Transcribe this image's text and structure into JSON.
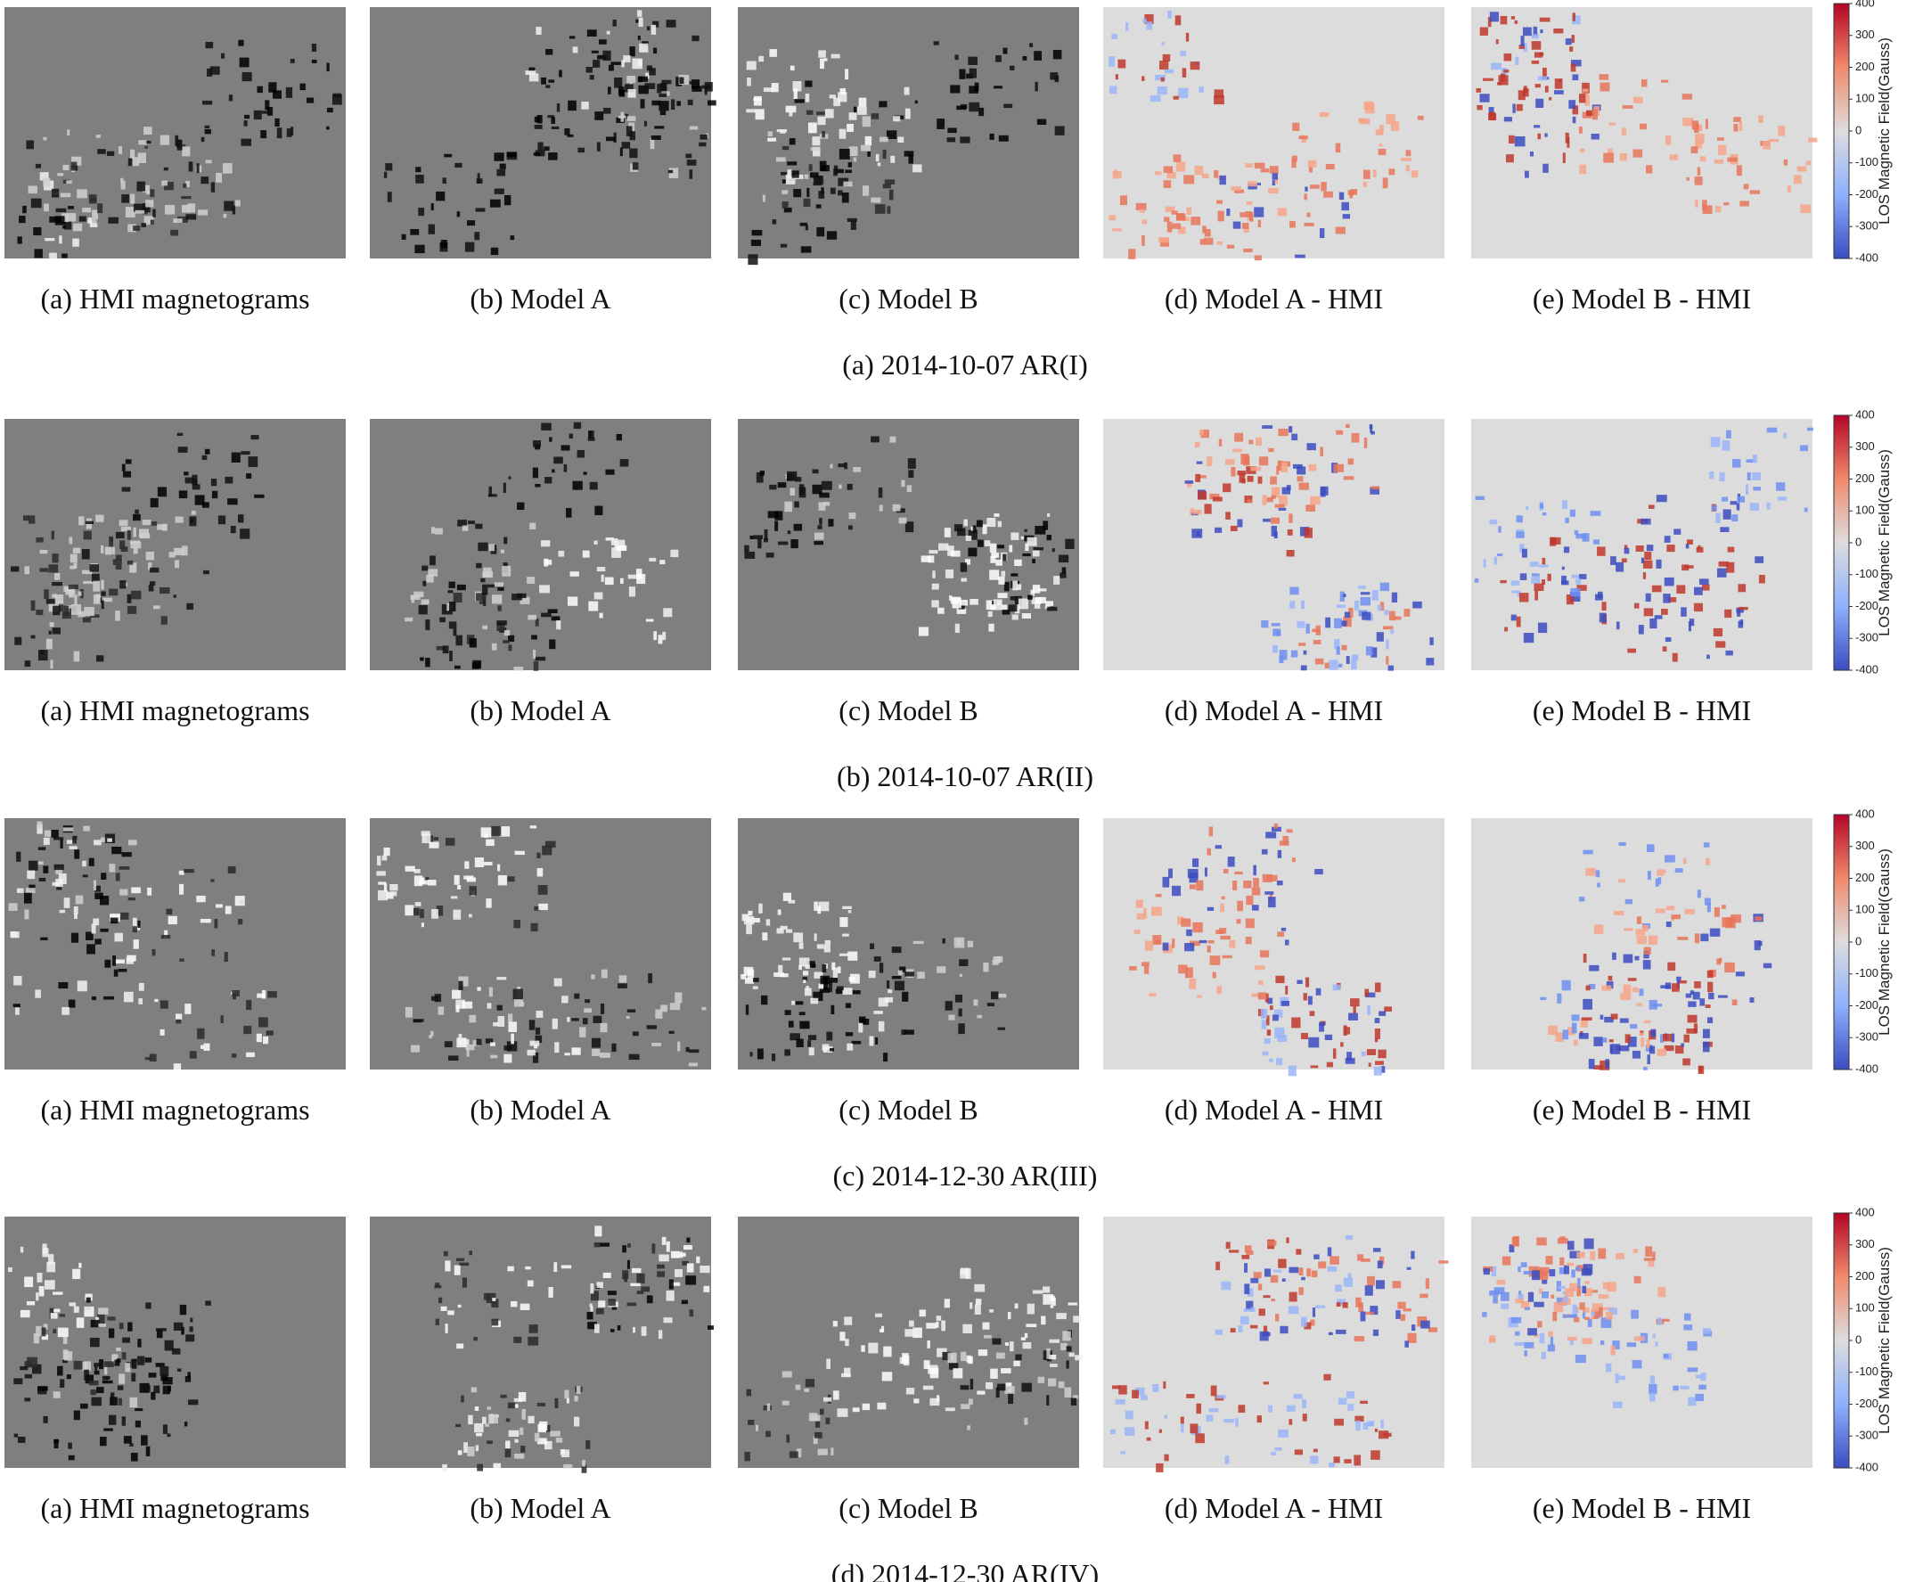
{
  "rows": [
    {
      "panels": [
        {
          "caption": "(a) HMI magnetograms"
        },
        {
          "caption": "(b) Model A"
        },
        {
          "caption": "(c) Model B"
        },
        {
          "caption": "(d) Model A - HMI"
        },
        {
          "caption": "(e) Model B - HMI"
        }
      ],
      "caption": "(a) 2014-10-07 AR(I)",
      "colorbar": {
        "label": "LOS Magnetic Field(Gauss)",
        "range": [
          -400,
          400
        ],
        "ticks": [
          -400,
          -300,
          -200,
          -100,
          0,
          100,
          200,
          300,
          400
        ]
      }
    },
    {
      "panels": [
        {
          "caption": "(a) HMI magnetograms"
        },
        {
          "caption": "(b) Model A"
        },
        {
          "caption": "(c) Model B"
        },
        {
          "caption": "(d) Model A - HMI"
        },
        {
          "caption": "(e) Model B - HMI"
        }
      ],
      "caption": "(b) 2014-10-07 AR(II)",
      "colorbar": {
        "label": "LOS Magnetic Field(Gauss)",
        "range": [
          -400,
          400
        ],
        "ticks": [
          -400,
          -300,
          -200,
          -100,
          0,
          100,
          200,
          300,
          400
        ]
      }
    },
    {
      "panels": [
        {
          "caption": "(a) HMI magnetograms"
        },
        {
          "caption": "(b) Model A"
        },
        {
          "caption": "(c) Model B"
        },
        {
          "caption": "(d) Model A - HMI"
        },
        {
          "caption": "(e) Model B - HMI"
        }
      ],
      "caption": "(c) 2014-12-30 AR(III)",
      "colorbar": {
        "label": "LOS Magnetic Field(Gauss)",
        "range": [
          -400,
          400
        ],
        "ticks": [
          -400,
          -300,
          -200,
          -100,
          0,
          100,
          200,
          300,
          400
        ]
      }
    },
    {
      "panels": [
        {
          "caption": "(a) HMI magnetograms"
        },
        {
          "caption": "(b) Model A"
        },
        {
          "caption": "(c) Model B"
        },
        {
          "caption": "(d) Model A - HMI"
        },
        {
          "caption": "(e) Model B - HMI"
        }
      ],
      "caption": "(d) 2014-12-30 AR(IV)",
      "colorbar": {
        "label": "LOS Magnetic Field(Gauss)",
        "range": [
          -400,
          400
        ],
        "ticks": [
          -400,
          -300,
          -200,
          -100,
          0,
          100,
          200,
          300,
          400
        ]
      }
    }
  ]
}
